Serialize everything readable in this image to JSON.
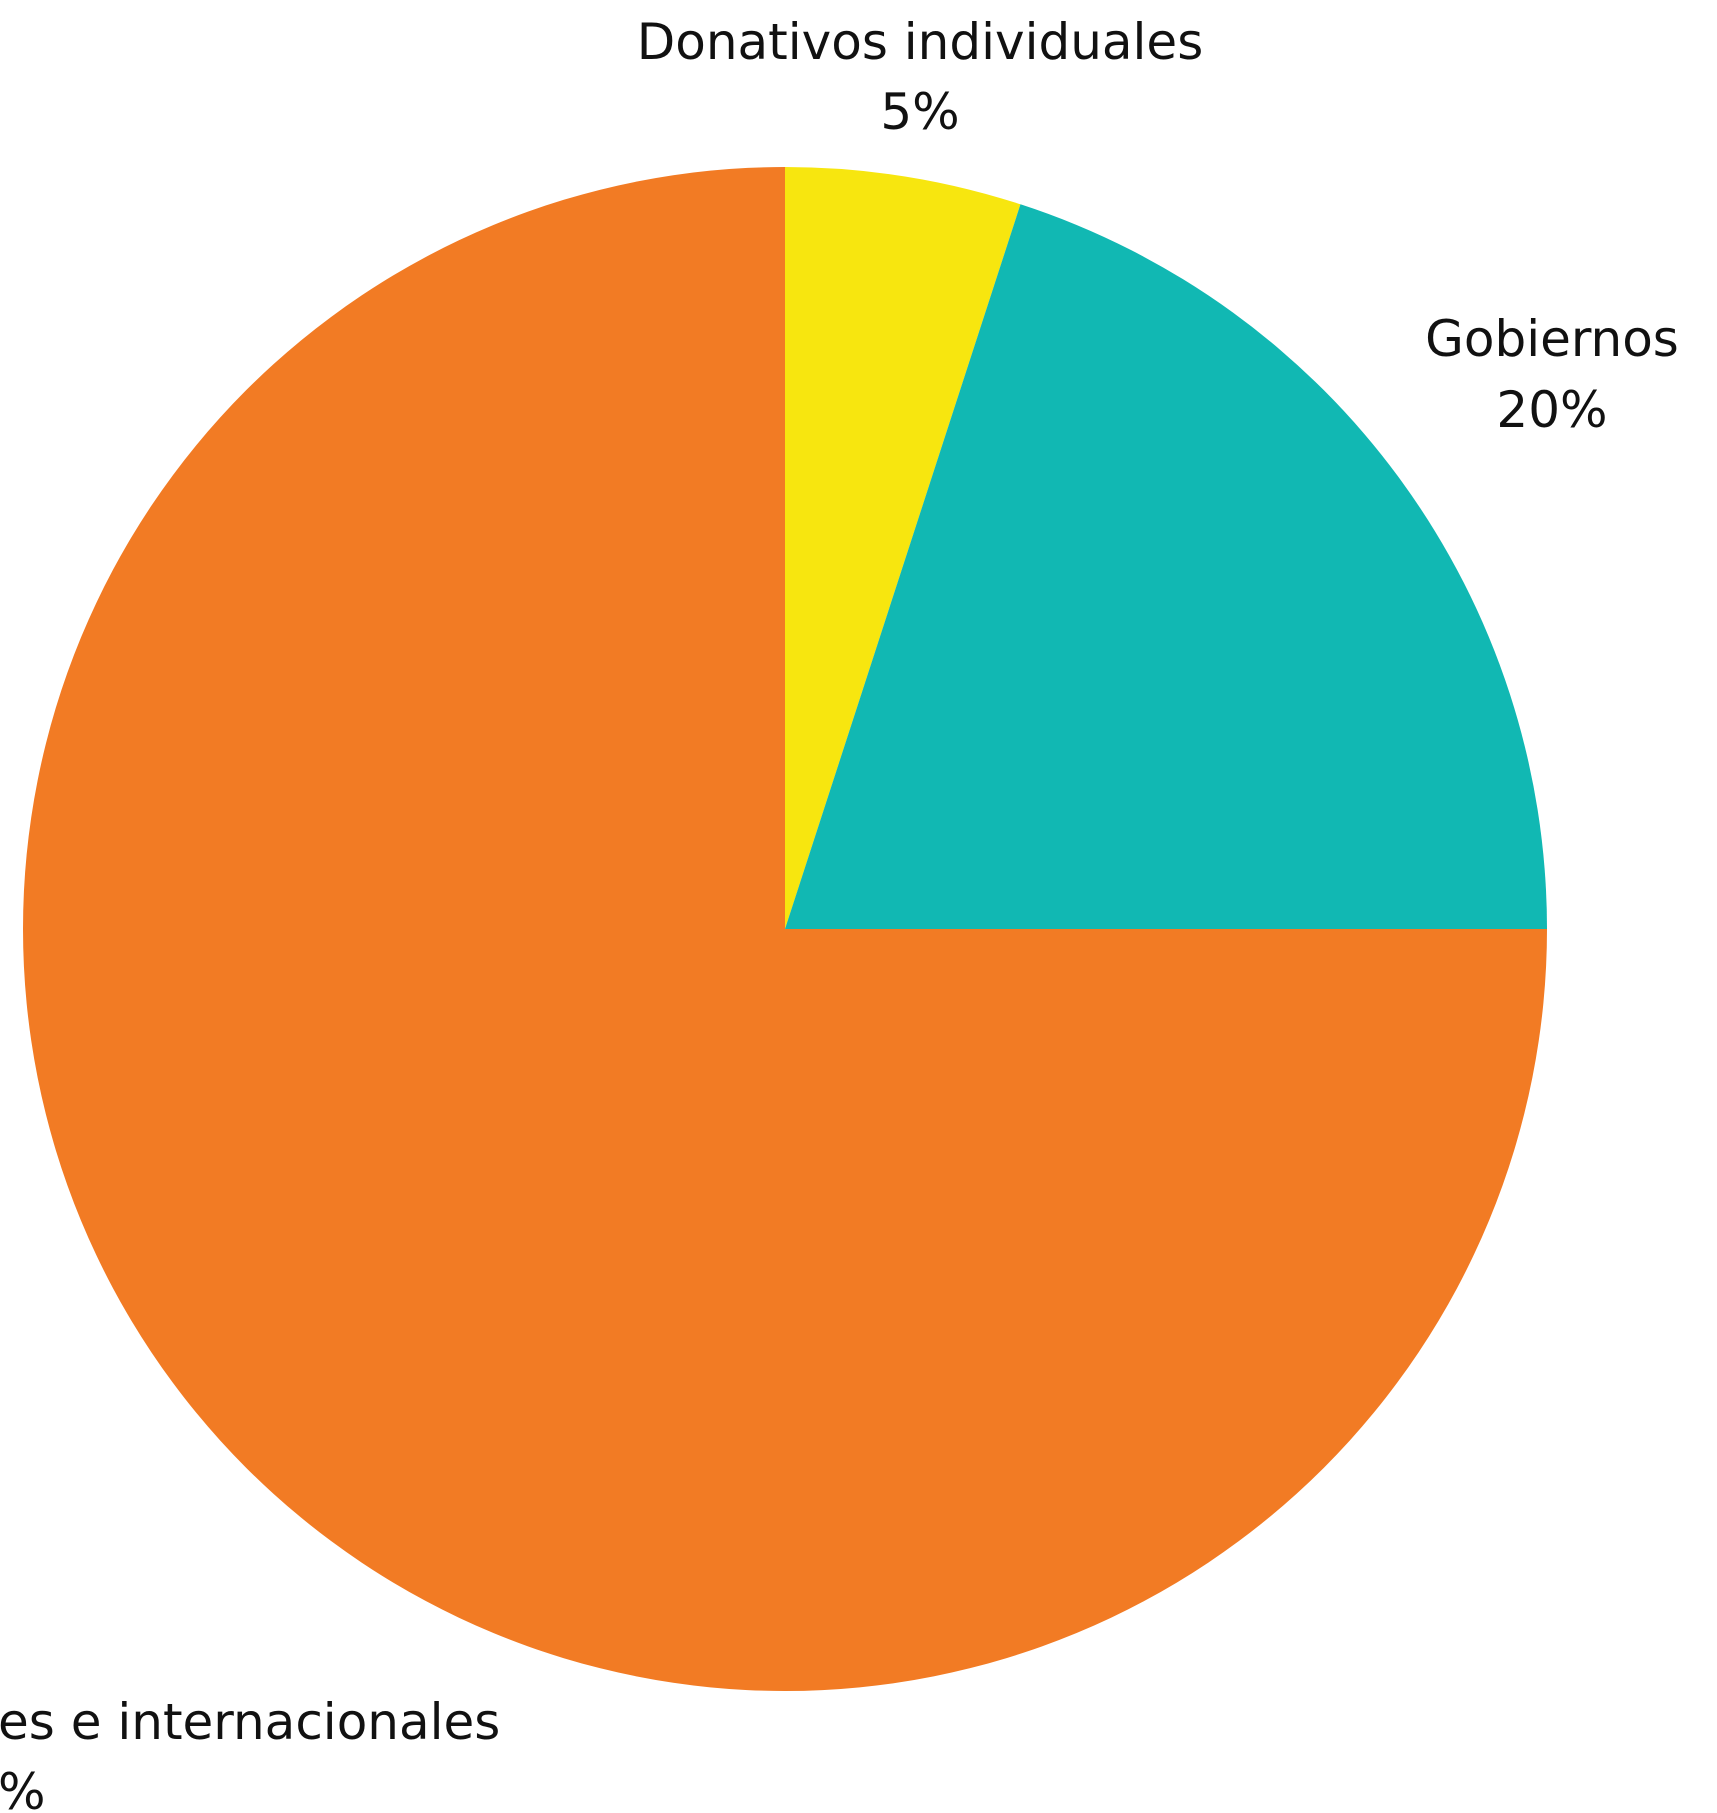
{
  "chart_data": {
    "type": "pie",
    "title": "",
    "slices": [
      {
        "label": "Donativos individuales",
        "value_label": "5%",
        "value": 5,
        "color": "#f7e60f"
      },
      {
        "label": "Gobiernos",
        "value_label": "20%",
        "value": 20,
        "color": "#11b8b3"
      },
      {
        "label": "es e internacionales",
        "value_label": "%",
        "value": 75,
        "color": "#f27b24"
      }
    ]
  }
}
